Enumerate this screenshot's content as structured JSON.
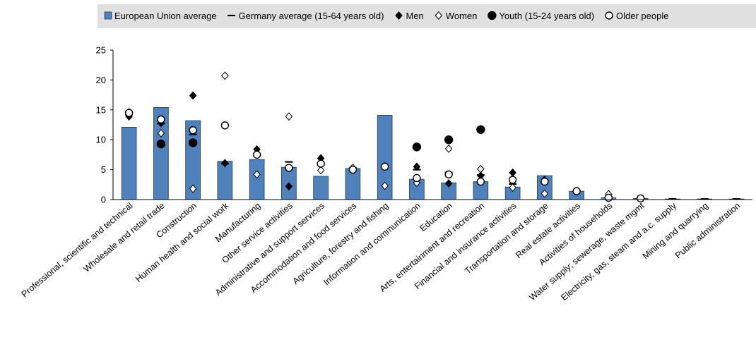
{
  "chart_data": {
    "type": "bar",
    "title": "",
    "xlabel": "",
    "ylabel": "",
    "ylim": [
      0,
      25
    ],
    "yticks": [
      0,
      5,
      10,
      15,
      20,
      25
    ],
    "grid": false,
    "legend_position": "top",
    "categories": [
      "Professional, scientific and technical",
      "Wholesale and retail trade",
      "Construction",
      "Human health and social work",
      "Manufacturing",
      "Other service activities",
      "Administrative and support services",
      "Accommodation and food services",
      "Agriculture, forestry and fishing",
      "Information and communication",
      "Education",
      "Arts, entertainment and recreation",
      "Financial and insurance activities",
      "Transportation and storage",
      "Real estate activities",
      "Activities of households",
      "Water supply; sewerage, waste mgmt",
      "Electricity, gas, steam and a.c. supply",
      "Mining and quarrying",
      "Public administration"
    ],
    "series": [
      {
        "name": "European Union average",
        "kind": "bar",
        "color": "#4f81bd",
        "values": [
          12.1,
          15.4,
          13.2,
          6.4,
          6.7,
          5.4,
          3.9,
          5.2,
          14.1,
          3.4,
          2.8,
          3.0,
          2.1,
          4.0,
          1.4,
          0.3,
          0.2,
          0.1,
          0.1,
          0.1
        ]
      },
      {
        "name": "Germany average (15-64 years old)",
        "kind": "dash",
        "color": "#000000",
        "values": [
          14.2,
          12.7,
          10.9,
          6.0,
          7.6,
          6.3,
          5.8,
          5.3,
          5.6,
          5.0,
          4.5,
          4.1,
          2.6,
          3.1,
          1.5,
          0.3,
          0.2,
          0.1,
          0.1,
          0.1
        ]
      },
      {
        "name": "Men",
        "kind": "diamond-filled",
        "color": "#000000",
        "values": [
          13.9,
          12.8,
          17.4,
          6.1,
          8.4,
          2.2,
          6.9,
          null,
          5.6,
          5.5,
          2.7,
          4.0,
          4.5,
          3.3,
          null,
          null,
          null,
          null,
          null,
          null
        ]
      },
      {
        "name": "Women",
        "kind": "diamond-open",
        "color": "#000000",
        "values": [
          14.6,
          11.1,
          1.8,
          20.7,
          4.2,
          13.9,
          4.9,
          5.3,
          2.3,
          2.8,
          8.5,
          5.1,
          2.0,
          1.0,
          1.4,
          0.9,
          null,
          null,
          null,
          null
        ]
      },
      {
        "name": "Youth (15-24 years old)",
        "kind": "circle-filled",
        "color": "#000000",
        "values": [
          null,
          9.3,
          9.5,
          null,
          null,
          null,
          null,
          null,
          null,
          8.8,
          10.0,
          11.7,
          null,
          null,
          null,
          null,
          null,
          null,
          null,
          null
        ]
      },
      {
        "name": "Older people",
        "kind": "circle-open",
        "color": "#000000",
        "values": [
          14.5,
          13.4,
          11.6,
          12.4,
          7.5,
          5.3,
          6.0,
          5.0,
          5.5,
          3.6,
          4.2,
          3.0,
          3.3,
          3.0,
          1.4,
          0.3,
          0.2,
          null,
          null,
          null
        ]
      }
    ]
  }
}
